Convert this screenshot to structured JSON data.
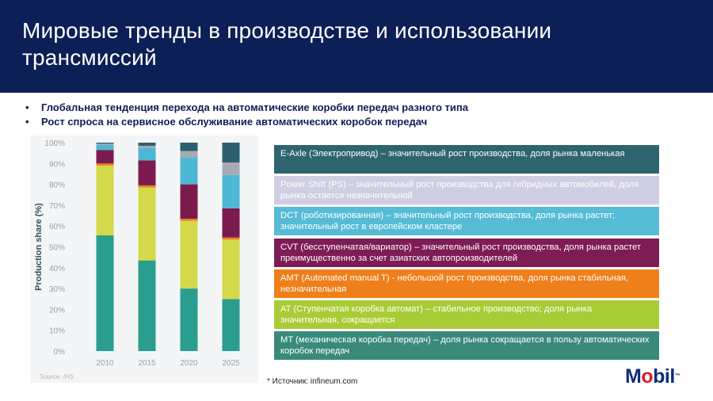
{
  "header": {
    "title": "Мировые тренды в производстве и использовании трансмиссий"
  },
  "bullets": [
    "Глобальная тенденция перехода на автоматические коробки передач разного типа",
    "Рост спроса на сервисное обслуживание автоматических коробок передач"
  ],
  "chart_data": {
    "type": "bar",
    "stacked": true,
    "ylabel": "Production share (%)",
    "ylim": [
      0,
      100
    ],
    "yticks": [
      "0%",
      "10%",
      "20%",
      "30%",
      "40%",
      "50%",
      "60%",
      "70%",
      "80%",
      "90%",
      "100%"
    ],
    "categories": [
      "2010",
      "2015",
      "2020",
      "2025"
    ],
    "source": "Source: IHS",
    "series": [
      {
        "name": "MT",
        "color": "#2a9d8f",
        "values": [
          55.5,
          43.5,
          30,
          25
        ]
      },
      {
        "name": "AT",
        "color": "#d3d94b",
        "values": [
          33.5,
          35,
          32.5,
          28.5
        ]
      },
      {
        "name": "AMT",
        "color": "#ef7f1a",
        "values": [
          1,
          1,
          1,
          1
        ]
      },
      {
        "name": "CVT",
        "color": "#7b1b4d",
        "values": [
          6.5,
          12,
          16.5,
          14
        ]
      },
      {
        "name": "DCT",
        "color": "#4db8d4",
        "values": [
          2.5,
          6,
          13,
          16
        ]
      },
      {
        "name": "Power Shift",
        "color": "#a9a9b3",
        "values": [
          0.5,
          1,
          3,
          6
        ]
      },
      {
        "name": "E-Axle",
        "color": "#2e5f6e",
        "values": [
          0.5,
          1.5,
          4,
          9.5
        ]
      }
    ]
  },
  "legend_rows": [
    {
      "text": "E-Axle (Электропривод) – значительный рост производства, доля рынка маленькая",
      "color": "#2e6470"
    },
    {
      "text": "Power Shift (PS) – значительный рост производства для гибридных автомобилей, доля рынка остается незначительной",
      "color": "#cfcfe1"
    },
    {
      "text": "DCT (роботизированная) – значительный рост производства, доля рынка растет; значительный рост в европейском кластере",
      "color": "#56bcd6"
    },
    {
      "text": "CVT (бесступенчатая/вариатор) – значительный рост производства, доля рынка растет преимущественно за счет азиатских автопроизводителей",
      "color": "#7d1c55"
    },
    {
      "text": "AMT (Automated manual T) - небольшой рост производства, доля рынка стабильная, незначительная",
      "color": "#ef7f1a"
    },
    {
      "text": "AT (Ступенчатая коробка автомат) – стабильное производство; доля рынка значительная, сокращается",
      "color": "#a8cc35"
    },
    {
      "text": "MT (механическая коробка передач) – доля рынка сокращается в пользу автоматических коробок передач",
      "color": "#3a8a7c"
    }
  ],
  "footer": {
    "source_note": "* Источник: infineum.com"
  },
  "logo": {
    "prefix": "M",
    "o": "o",
    "suffix": "bil",
    "tm": "™"
  }
}
